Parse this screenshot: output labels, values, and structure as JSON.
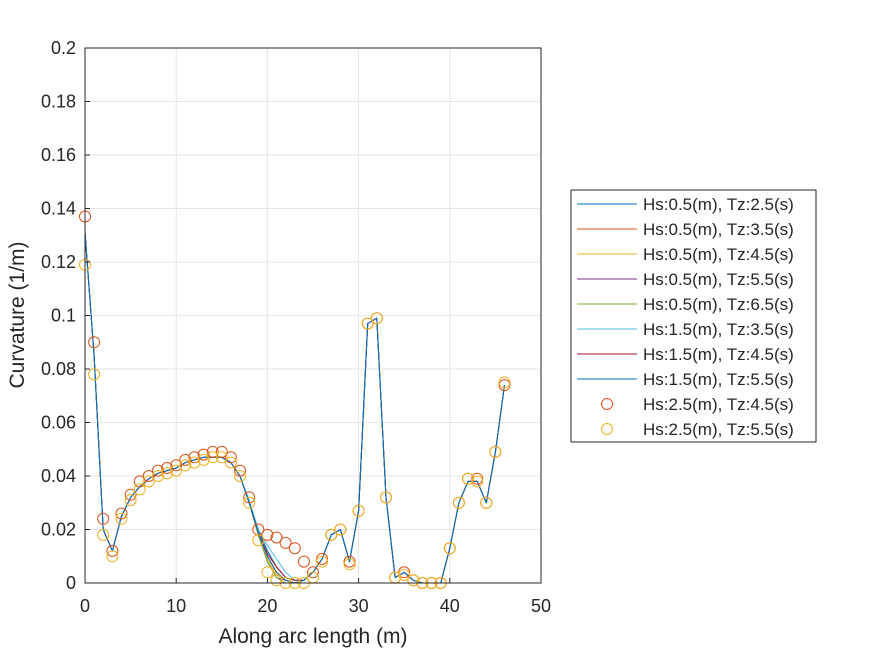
{
  "chart_data": {
    "type": "line",
    "title": "",
    "xlabel": "Along arc length (m)",
    "ylabel": "Curvature (1/m)",
    "xlim": [
      0,
      50
    ],
    "ylim": [
      0,
      0.2
    ],
    "xticks": [
      0,
      10,
      20,
      30,
      40,
      50
    ],
    "xtick_labels": [
      "0",
      "10",
      "20",
      "30",
      "40",
      "50"
    ],
    "yticks": [
      0,
      0.02,
      0.04,
      0.06,
      0.08,
      0.1,
      0.12,
      0.14,
      0.16,
      0.18,
      0.2
    ],
    "ytick_labels": [
      "0",
      "0.02",
      "0.04",
      "0.06",
      "0.08",
      "0.1",
      "0.12",
      "0.14",
      "0.16",
      "0.18",
      "0.2"
    ],
    "grid": true,
    "legend_position": "right, outside plot",
    "series": [
      {
        "name": "Hs:0.5(m), Tz:2.5(s)",
        "style": "line",
        "color": "#0072BD",
        "x": [
          0,
          1,
          2,
          3,
          4,
          5,
          6,
          7,
          8,
          9,
          10,
          11,
          12,
          13,
          14,
          15,
          16,
          17,
          18,
          19,
          20,
          21,
          22,
          23,
          24,
          25,
          26,
          27,
          28,
          29,
          30,
          31,
          32,
          33,
          34,
          35,
          36,
          37,
          38,
          39,
          40,
          41,
          42,
          43,
          44,
          45,
          46
        ],
        "y": [
          0.131,
          0.085,
          0.02,
          0.012,
          0.025,
          0.032,
          0.036,
          0.039,
          0.041,
          0.042,
          0.043,
          0.045,
          0.046,
          0.047,
          0.047,
          0.047,
          0.045,
          0.04,
          0.03,
          0.02,
          0.012,
          0.006,
          0.002,
          0.001,
          0.001,
          0.004,
          0.009,
          0.018,
          0.02,
          0.008,
          0.027,
          0.097,
          0.099,
          0.032,
          0.002,
          0.004,
          0.001,
          0.0,
          0.0,
          0.0,
          0.013,
          0.03,
          0.038,
          0.038,
          0.03,
          0.049,
          0.074
        ]
      },
      {
        "name": "Hs:0.5(m), Tz:3.5(s)",
        "style": "line",
        "color": "#D95319",
        "x": [
          0,
          1,
          2,
          3,
          4,
          5,
          6,
          7,
          8,
          9,
          10,
          11,
          12,
          13,
          14,
          15,
          16,
          17,
          18,
          19,
          20,
          21,
          22,
          23,
          24,
          25,
          26,
          27,
          28,
          29,
          30,
          31,
          32,
          33,
          34,
          35,
          36,
          37,
          38,
          39,
          40,
          41,
          42,
          43,
          44,
          45,
          46
        ],
        "y": [
          0.131,
          0.085,
          0.02,
          0.012,
          0.025,
          0.032,
          0.036,
          0.039,
          0.041,
          0.042,
          0.043,
          0.045,
          0.046,
          0.047,
          0.047,
          0.047,
          0.045,
          0.04,
          0.03,
          0.018,
          0.01,
          0.004,
          0.001,
          0.0,
          0.001,
          0.004,
          0.009,
          0.018,
          0.02,
          0.008,
          0.027,
          0.097,
          0.099,
          0.032,
          0.002,
          0.004,
          0.001,
          0.0,
          0.0,
          0.0,
          0.013,
          0.03,
          0.038,
          0.038,
          0.03,
          0.049,
          0.074
        ]
      },
      {
        "name": "Hs:0.5(m), Tz:4.5(s)",
        "style": "line",
        "color": "#EDB120",
        "x": [
          0,
          1,
          2,
          3,
          4,
          5,
          6,
          7,
          8,
          9,
          10,
          11,
          12,
          13,
          14,
          15,
          16,
          17,
          18,
          19,
          20,
          21,
          22,
          23,
          24,
          25,
          26,
          27,
          28,
          29,
          30,
          31,
          32,
          33,
          34,
          35,
          36,
          37,
          38,
          39,
          40,
          41,
          42,
          43,
          44,
          45,
          46
        ],
        "y": [
          0.131,
          0.085,
          0.02,
          0.012,
          0.025,
          0.032,
          0.036,
          0.039,
          0.041,
          0.042,
          0.043,
          0.045,
          0.046,
          0.047,
          0.047,
          0.047,
          0.045,
          0.04,
          0.03,
          0.018,
          0.009,
          0.003,
          0.001,
          0.0,
          0.001,
          0.004,
          0.009,
          0.018,
          0.02,
          0.008,
          0.027,
          0.097,
          0.099,
          0.032,
          0.002,
          0.004,
          0.001,
          0.0,
          0.0,
          0.0,
          0.013,
          0.03,
          0.038,
          0.038,
          0.03,
          0.049,
          0.074
        ]
      },
      {
        "name": "Hs:0.5(m), Tz:5.5(s)",
        "style": "line",
        "color": "#7E2F8E",
        "x": [
          0,
          1,
          2,
          3,
          4,
          5,
          6,
          7,
          8,
          9,
          10,
          11,
          12,
          13,
          14,
          15,
          16,
          17,
          18,
          19,
          20,
          21,
          22,
          23,
          24,
          25,
          26,
          27,
          28,
          29,
          30,
          31,
          32,
          33,
          34,
          35,
          36,
          37,
          38,
          39,
          40,
          41,
          42,
          43,
          44,
          45,
          46
        ],
        "y": [
          0.131,
          0.085,
          0.02,
          0.012,
          0.025,
          0.032,
          0.036,
          0.039,
          0.041,
          0.042,
          0.043,
          0.045,
          0.046,
          0.047,
          0.047,
          0.047,
          0.045,
          0.04,
          0.03,
          0.018,
          0.008,
          0.002,
          0.001,
          0.0,
          0.001,
          0.004,
          0.009,
          0.018,
          0.02,
          0.008,
          0.027,
          0.097,
          0.099,
          0.032,
          0.002,
          0.004,
          0.001,
          0.0,
          0.0,
          0.0,
          0.013,
          0.03,
          0.038,
          0.038,
          0.03,
          0.049,
          0.074
        ]
      },
      {
        "name": "Hs:0.5(m), Tz:6.5(s)",
        "style": "line",
        "color": "#77AC30",
        "x": [
          0,
          1,
          2,
          3,
          4,
          5,
          6,
          7,
          8,
          9,
          10,
          11,
          12,
          13,
          14,
          15,
          16,
          17,
          18,
          19,
          20,
          21,
          22,
          23,
          24,
          25,
          26,
          27,
          28,
          29,
          30,
          31,
          32,
          33,
          34,
          35,
          36,
          37,
          38,
          39,
          40,
          41,
          42,
          43,
          44,
          45,
          46
        ],
        "y": [
          0.131,
          0.085,
          0.02,
          0.012,
          0.025,
          0.032,
          0.036,
          0.039,
          0.041,
          0.042,
          0.043,
          0.045,
          0.046,
          0.047,
          0.047,
          0.047,
          0.045,
          0.04,
          0.03,
          0.018,
          0.008,
          0.002,
          0.0,
          0.0,
          0.001,
          0.004,
          0.009,
          0.018,
          0.02,
          0.008,
          0.027,
          0.097,
          0.099,
          0.032,
          0.002,
          0.004,
          0.001,
          0.0,
          0.0,
          0.0,
          0.013,
          0.03,
          0.038,
          0.038,
          0.03,
          0.049,
          0.074
        ]
      },
      {
        "name": "Hs:1.5(m), Tz:3.5(s)",
        "style": "line",
        "color": "#4DBEEE",
        "x": [
          0,
          1,
          2,
          3,
          4,
          5,
          6,
          7,
          8,
          9,
          10,
          11,
          12,
          13,
          14,
          15,
          16,
          17,
          18,
          19,
          20,
          21,
          22,
          23,
          24,
          25,
          26,
          27,
          28,
          29,
          30,
          31,
          32,
          33,
          34,
          35,
          36,
          37,
          38,
          39,
          40,
          41,
          42,
          43,
          44,
          45,
          46
        ],
        "y": [
          0.131,
          0.085,
          0.02,
          0.012,
          0.025,
          0.032,
          0.036,
          0.039,
          0.041,
          0.042,
          0.043,
          0.045,
          0.046,
          0.047,
          0.047,
          0.047,
          0.045,
          0.04,
          0.031,
          0.02,
          0.014,
          0.009,
          0.004,
          0.001,
          0.001,
          0.004,
          0.009,
          0.018,
          0.02,
          0.008,
          0.027,
          0.097,
          0.099,
          0.032,
          0.002,
          0.004,
          0.001,
          0.0,
          0.0,
          0.0,
          0.013,
          0.03,
          0.038,
          0.038,
          0.03,
          0.049,
          0.074
        ]
      },
      {
        "name": "Hs:1.5(m), Tz:4.5(s)",
        "style": "line",
        "color": "#A2142F",
        "x": [
          0,
          1,
          2,
          3,
          4,
          5,
          6,
          7,
          8,
          9,
          10,
          11,
          12,
          13,
          14,
          15,
          16,
          17,
          18,
          19,
          20,
          21,
          22,
          23,
          24,
          25,
          26,
          27,
          28,
          29,
          30,
          31,
          32,
          33,
          34,
          35,
          36,
          37,
          38,
          39,
          40,
          41,
          42,
          43,
          44,
          45,
          46
        ],
        "y": [
          0.131,
          0.085,
          0.02,
          0.012,
          0.025,
          0.032,
          0.036,
          0.039,
          0.041,
          0.042,
          0.043,
          0.045,
          0.046,
          0.047,
          0.047,
          0.047,
          0.045,
          0.04,
          0.03,
          0.019,
          0.011,
          0.006,
          0.002,
          0.001,
          0.001,
          0.004,
          0.009,
          0.018,
          0.02,
          0.008,
          0.027,
          0.097,
          0.099,
          0.032,
          0.002,
          0.004,
          0.001,
          0.0,
          0.0,
          0.0,
          0.013,
          0.03,
          0.038,
          0.038,
          0.03,
          0.049,
          0.074
        ]
      },
      {
        "name": "Hs:1.5(m), Tz:5.5(s)",
        "style": "line",
        "color": "#0072BD",
        "x": [
          0,
          1,
          2,
          3,
          4,
          5,
          6,
          7,
          8,
          9,
          10,
          11,
          12,
          13,
          14,
          15,
          16,
          17,
          18,
          19,
          20,
          21,
          22,
          23,
          24,
          25,
          26,
          27,
          28,
          29,
          30,
          31,
          32,
          33,
          34,
          35,
          36,
          37,
          38,
          39,
          40,
          41,
          42,
          43,
          44,
          45,
          46
        ],
        "y": [
          0.131,
          0.085,
          0.02,
          0.012,
          0.025,
          0.032,
          0.036,
          0.039,
          0.041,
          0.042,
          0.043,
          0.045,
          0.046,
          0.047,
          0.047,
          0.047,
          0.045,
          0.04,
          0.03,
          0.019,
          0.01,
          0.004,
          0.001,
          0.0,
          0.001,
          0.004,
          0.009,
          0.018,
          0.02,
          0.008,
          0.027,
          0.097,
          0.099,
          0.032,
          0.002,
          0.004,
          0.001,
          0.0,
          0.0,
          0.0,
          0.013,
          0.03,
          0.038,
          0.038,
          0.03,
          0.049,
          0.074
        ]
      },
      {
        "name": "Hs:2.5(m), Tz:4.5(s)",
        "style": "marker",
        "color": "#D95319",
        "x": [
          0,
          1,
          2,
          3,
          4,
          5,
          6,
          7,
          8,
          9,
          10,
          11,
          12,
          13,
          14,
          15,
          16,
          17,
          18,
          19,
          20,
          21,
          22,
          23,
          24,
          25,
          26,
          27,
          28,
          29,
          30,
          31,
          32,
          33,
          34,
          35,
          36,
          37,
          38,
          39,
          40,
          41,
          42,
          43,
          44,
          45,
          46
        ],
        "y": [
          0.137,
          0.09,
          0.024,
          0.012,
          0.026,
          0.033,
          0.038,
          0.04,
          0.042,
          0.043,
          0.044,
          0.046,
          0.047,
          0.048,
          0.049,
          0.049,
          0.047,
          0.042,
          0.032,
          0.02,
          0.018,
          0.017,
          0.015,
          0.013,
          0.008,
          0.004,
          0.009,
          0.018,
          0.02,
          0.008,
          0.027,
          0.097,
          0.099,
          0.032,
          0.002,
          0.004,
          0.001,
          0.0,
          0.0,
          0.0,
          0.013,
          0.03,
          0.039,
          0.039,
          0.03,
          0.049,
          0.074
        ]
      },
      {
        "name": "Hs:2.5(m), Tz:5.5(s)",
        "style": "marker",
        "color": "#EDB120",
        "x": [
          0,
          1,
          2,
          3,
          4,
          5,
          6,
          7,
          8,
          9,
          10,
          11,
          12,
          13,
          14,
          15,
          16,
          17,
          18,
          19,
          20,
          21,
          22,
          23,
          24,
          25,
          26,
          27,
          28,
          29,
          30,
          31,
          32,
          33,
          34,
          35,
          36,
          37,
          38,
          39,
          40,
          41,
          42,
          43,
          44,
          45,
          46
        ],
        "y": [
          0.119,
          0.078,
          0.018,
          0.01,
          0.024,
          0.031,
          0.035,
          0.038,
          0.04,
          0.041,
          0.042,
          0.044,
          0.045,
          0.046,
          0.047,
          0.047,
          0.045,
          0.04,
          0.03,
          0.016,
          0.004,
          0.001,
          0.0,
          0.0,
          0.0,
          0.002,
          0.008,
          0.018,
          0.02,
          0.007,
          0.027,
          0.097,
          0.099,
          0.032,
          0.002,
          0.003,
          0.001,
          0.0,
          0.0,
          0.0,
          0.013,
          0.03,
          0.039,
          0.038,
          0.03,
          0.049,
          0.075
        ]
      }
    ]
  }
}
